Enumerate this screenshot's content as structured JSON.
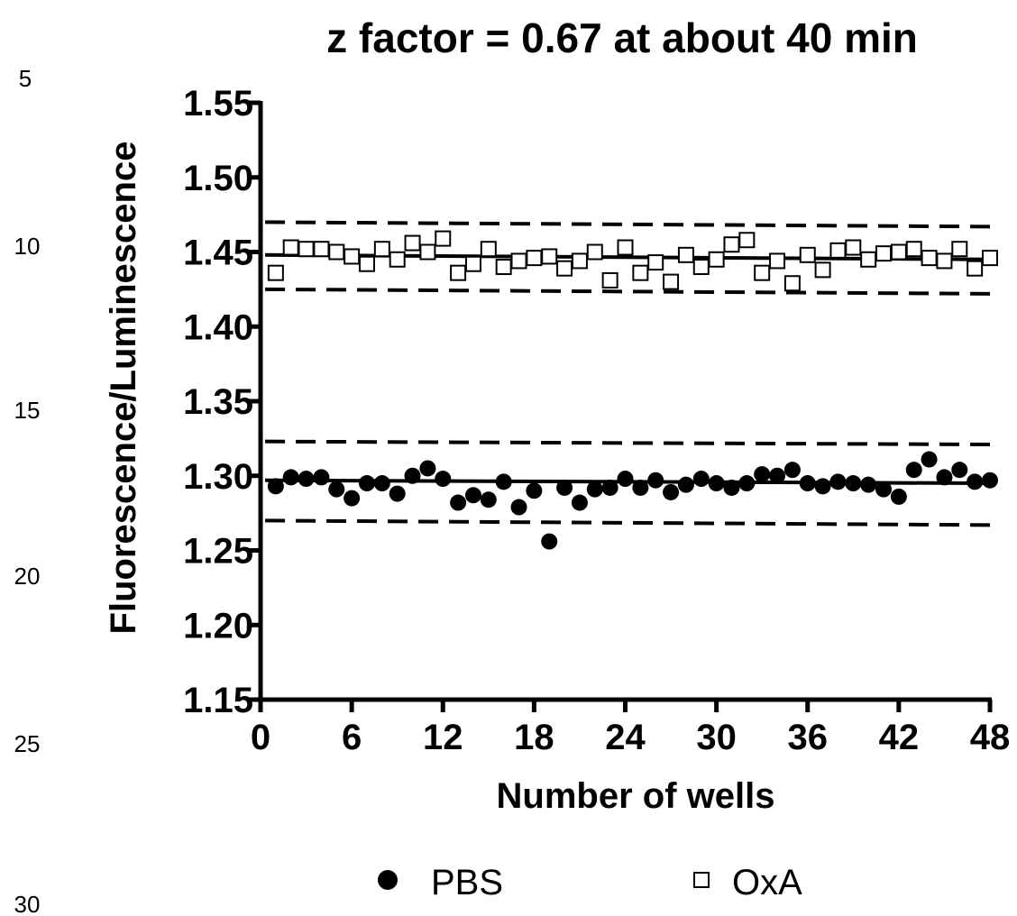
{
  "margin_numbers": [
    "5",
    "10",
    "15",
    "20",
    "25",
    "30"
  ],
  "chart_data": {
    "type": "scatter",
    "title": "z factor = 0.67 at about 40 min",
    "xlabel": "Number of wells",
    "ylabel": "Fluorescence/Luminescence",
    "xlim": [
      0,
      48
    ],
    "ylim": [
      1.15,
      1.55
    ],
    "xticks": [
      "0",
      "6",
      "12",
      "18",
      "24",
      "30",
      "36",
      "42",
      "48"
    ],
    "yticks": [
      "1.15",
      "1.20",
      "1.25",
      "1.30",
      "1.35",
      "1.40",
      "1.45",
      "1.50",
      "1.55"
    ],
    "grid": false,
    "legend_position": "bottom",
    "series": [
      {
        "name": "PBS",
        "marker": "filled-circle",
        "color": "#000000",
        "x": [
          1,
          2,
          3,
          4,
          5,
          6,
          7,
          8,
          9,
          10,
          11,
          12,
          13,
          14,
          15,
          16,
          17,
          18,
          19,
          20,
          21,
          22,
          23,
          24,
          25,
          26,
          27,
          28,
          29,
          30,
          31,
          32,
          33,
          34,
          35,
          36,
          37,
          38,
          39,
          40,
          41,
          42,
          43,
          44,
          45,
          46,
          47,
          48
        ],
        "y": [
          1.293,
          1.299,
          1.298,
          1.299,
          1.291,
          1.285,
          1.295,
          1.295,
          1.288,
          1.3,
          1.305,
          1.298,
          1.282,
          1.287,
          1.284,
          1.296,
          1.279,
          1.29,
          1.256,
          1.292,
          1.282,
          1.291,
          1.292,
          1.298,
          1.292,
          1.297,
          1.289,
          1.294,
          1.298,
          1.295,
          1.292,
          1.295,
          1.301,
          1.3,
          1.304,
          1.295,
          1.293,
          1.296,
          1.295,
          1.294,
          1.291,
          1.286,
          1.304,
          1.311,
          1.299,
          1.304,
          1.296,
          1.297
        ],
        "mean": 1.296,
        "mean_line": [
          1.297,
          1.295
        ],
        "upper_limit": [
          1.323,
          1.321
        ],
        "lower_limit": [
          1.27,
          1.267
        ]
      },
      {
        "name": "OxA",
        "marker": "open-square",
        "color": "#000000",
        "x": [
          1,
          2,
          3,
          4,
          5,
          6,
          7,
          8,
          9,
          10,
          11,
          12,
          13,
          14,
          15,
          16,
          17,
          18,
          19,
          20,
          21,
          22,
          23,
          24,
          25,
          26,
          27,
          28,
          29,
          30,
          31,
          32,
          33,
          34,
          35,
          36,
          37,
          38,
          39,
          40,
          41,
          42,
          43,
          44,
          45,
          46,
          47,
          48
        ],
        "y": [
          1.436,
          1.453,
          1.452,
          1.452,
          1.45,
          1.447,
          1.442,
          1.452,
          1.445,
          1.456,
          1.45,
          1.459,
          1.436,
          1.442,
          1.452,
          1.44,
          1.444,
          1.446,
          1.447,
          1.439,
          1.444,
          1.45,
          1.431,
          1.453,
          1.436,
          1.443,
          1.43,
          1.448,
          1.44,
          1.445,
          1.455,
          1.458,
          1.436,
          1.444,
          1.429,
          1.448,
          1.438,
          1.451,
          1.453,
          1.445,
          1.449,
          1.45,
          1.452,
          1.446,
          1.444,
          1.452,
          1.439,
          1.446
        ],
        "mean": 1.447,
        "mean_line": [
          1.448,
          1.445
        ],
        "upper_limit": [
          1.47,
          1.467
        ],
        "lower_limit": [
          1.425,
          1.422
        ]
      }
    ]
  }
}
